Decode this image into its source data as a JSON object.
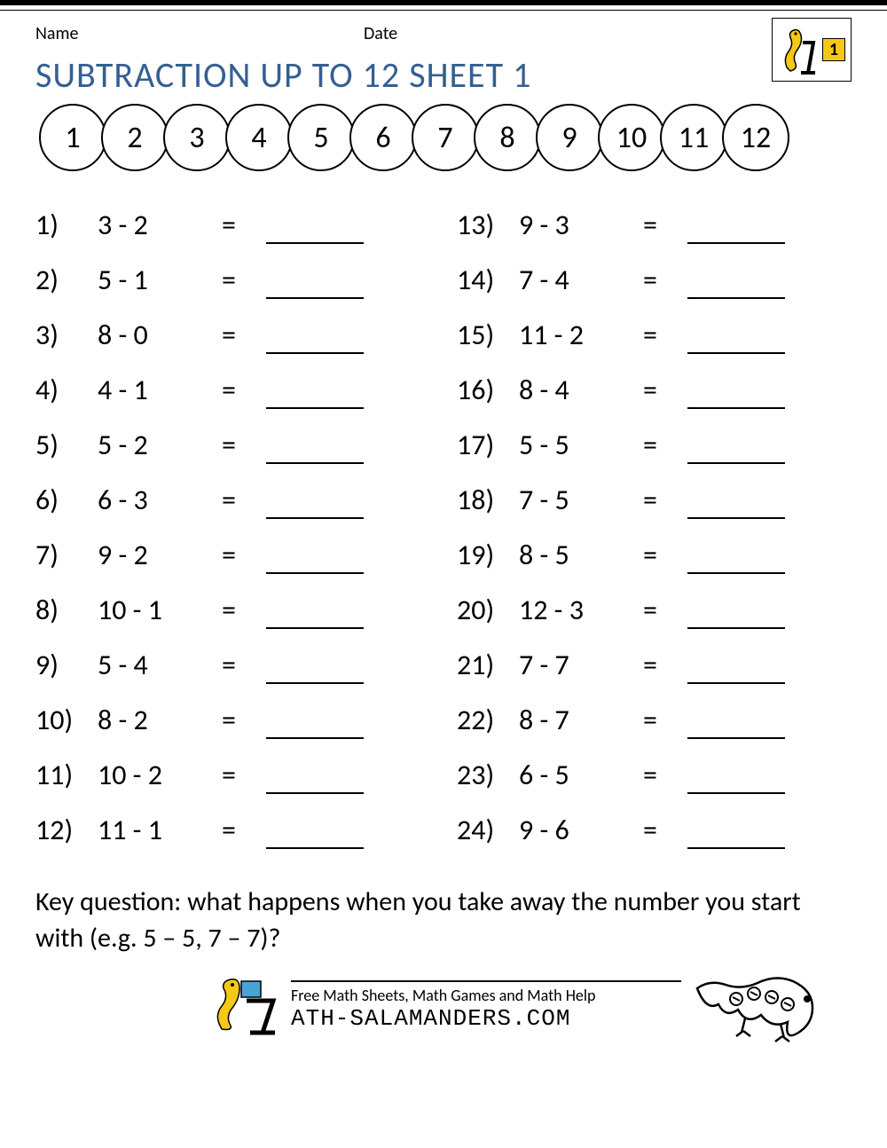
{
  "header": {
    "name_label": "Name",
    "date_label": "Date",
    "grade_badge": "1"
  },
  "title": "SUBTRACTION UP TO 12 SHEET 1",
  "number_line": [
    "1",
    "2",
    "3",
    "4",
    "5",
    "6",
    "7",
    "8",
    "9",
    "10",
    "11",
    "12"
  ],
  "left_problems": [
    {
      "n": "1)",
      "expr": "3 - 2"
    },
    {
      "n": "2)",
      "expr": "5 - 1"
    },
    {
      "n": "3)",
      "expr": "8 - 0"
    },
    {
      "n": "4)",
      "expr": "4 - 1"
    },
    {
      "n": "5)",
      "expr": "5 - 2"
    },
    {
      "n": "6)",
      "expr": "6 - 3"
    },
    {
      "n": "7)",
      "expr": "9 - 2"
    },
    {
      "n": "8)",
      "expr": "10 - 1"
    },
    {
      "n": "9)",
      "expr": "5 - 4"
    },
    {
      "n": "10)",
      "expr": "8 - 2"
    },
    {
      "n": "11)",
      "expr": "10 - 2"
    },
    {
      "n": "12)",
      "expr": "11 - 1"
    }
  ],
  "right_problems": [
    {
      "n": "13)",
      "expr": "9 - 3"
    },
    {
      "n": "14)",
      "expr": "7 - 4"
    },
    {
      "n": "15)",
      "expr": "11 - 2"
    },
    {
      "n": "16)",
      "expr": "8 - 4"
    },
    {
      "n": "17)",
      "expr": "5 - 5"
    },
    {
      "n": "18)",
      "expr": "7 - 5"
    },
    {
      "n": "19)",
      "expr": "8 - 5"
    },
    {
      "n": "20)",
      "expr": "12 - 3"
    },
    {
      "n": "21)",
      "expr": "7 - 7"
    },
    {
      "n": "22)",
      "expr": "8 - 7"
    },
    {
      "n": "23)",
      "expr": "6 - 5"
    },
    {
      "n": "24)",
      "expr": "9 - 6"
    }
  ],
  "equals": "=",
  "key_question": "Key question: what happens when you take away the number you start with (e.g. 5 – 5, 7 – 7)?",
  "footer": {
    "tagline": "Free Math Sheets, Math Games and Math Help",
    "brand": "ATH-SALAMANDERS.COM"
  },
  "colors": {
    "title_color": "#355f91",
    "text_color": "#000000",
    "background": "#ffffff",
    "badge_bg": "#f5c815"
  }
}
